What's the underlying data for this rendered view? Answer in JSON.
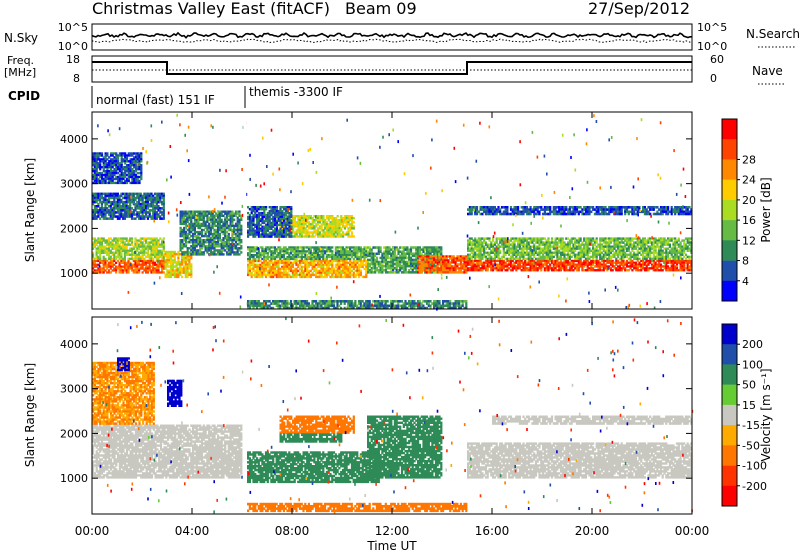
{
  "header": {
    "title": "Christmas Valley East (fitACF)",
    "beam": "Beam 09",
    "date": "27/Sep/2012"
  },
  "panels": {
    "nsky": {
      "label_left": "N.Sky",
      "label_right": "N.Search",
      "tick_top": "10^5",
      "tick_bottom": "10^0",
      "tick_top_right": "10^5",
      "tick_bottom_right": "10^0"
    },
    "freq": {
      "label_left_1": "Freq.",
      "label_left_2": "[MHz]",
      "tick_top": "18",
      "tick_bottom": "8",
      "label_right": "Nave",
      "tick_top_right": "60",
      "tick_bottom_right": "0"
    },
    "cpid": {
      "label": "CPID",
      "segment_1": "normal (fast) 151 IF",
      "segment_2": "themis -3300 IF"
    }
  },
  "chart_data": [
    {
      "type": "heatmap",
      "name": "power",
      "ylabel": "Slant Range [km]",
      "xlabel": "",
      "ylim": [
        200,
        4600
      ],
      "yticks": [
        "1000",
        "2000",
        "3000",
        "4000"
      ],
      "colorbar": {
        "label": "Power [dB]",
        "ticks": [
          "4",
          "8",
          "12",
          "16",
          "20",
          "24",
          "28"
        ],
        "colors": [
          "#0000ff",
          "#1f4faa",
          "#2e8b57",
          "#66bb44",
          "#aadd22",
          "#ffcc00",
          "#ff8800",
          "#ff4400",
          "#ff0000"
        ]
      },
      "features": [
        {
          "t0": 0.0,
          "t1": 2.9,
          "r0": 1000,
          "r1": 1300,
          "level": 24
        },
        {
          "t0": 0.0,
          "t1": 2.9,
          "r0": 1300,
          "r1": 1800,
          "level": 14
        },
        {
          "t0": 0.0,
          "t1": 2.9,
          "r0": 2200,
          "r1": 2800,
          "level": 6
        },
        {
          "t0": 0.0,
          "t1": 2.0,
          "r0": 3000,
          "r1": 3700,
          "level": 5
        },
        {
          "t0": 2.9,
          "t1": 4.0,
          "r0": 900,
          "r1": 1500,
          "level": 18
        },
        {
          "t0": 3.5,
          "t1": 6.0,
          "r0": 1400,
          "r1": 2400,
          "level": 8
        },
        {
          "t0": 6.2,
          "t1": 11.0,
          "r0": 900,
          "r1": 1300,
          "level": 20
        },
        {
          "t0": 6.2,
          "t1": 11.0,
          "r0": 1300,
          "r1": 1600,
          "level": 10
        },
        {
          "t0": 7.5,
          "t1": 10.5,
          "r0": 1800,
          "r1": 2300,
          "level": 16
        },
        {
          "t0": 6.2,
          "t1": 8.0,
          "r0": 1800,
          "r1": 2500,
          "level": 6
        },
        {
          "t0": 11.0,
          "t1": 14.0,
          "r0": 1000,
          "r1": 1600,
          "level": 10
        },
        {
          "t0": 13.0,
          "t1": 15.0,
          "r0": 1000,
          "r1": 1400,
          "level": 24
        },
        {
          "t0": 15.0,
          "t1": 24.0,
          "r0": 1050,
          "r1": 1300,
          "level": 26
        },
        {
          "t0": 15.0,
          "t1": 24.0,
          "r0": 1300,
          "r1": 1800,
          "level": 12
        },
        {
          "t0": 15.0,
          "t1": 24.0,
          "r0": 2300,
          "r1": 2500,
          "level": 5
        },
        {
          "t0": 6.2,
          "t1": 15.0,
          "r0": 200,
          "r1": 400,
          "level": 8
        }
      ]
    },
    {
      "type": "heatmap",
      "name": "velocity",
      "ylabel": "Slant Range [km]",
      "xlabel": "Time UT",
      "ylim": [
        200,
        4600
      ],
      "yticks": [
        "1000",
        "2000",
        "3000",
        "4000"
      ],
      "xticks": [
        "00:00",
        "04:00",
        "08:00",
        "12:00",
        "16:00",
        "20:00",
        "00:00"
      ],
      "colorbar": {
        "label": "Velocity [m s⁻¹]",
        "ticks": [
          "200",
          "100",
          "50",
          "15",
          "-15",
          "-50",
          "-100",
          "-200"
        ],
        "colors": [
          "#0000cc",
          "#1f4faa",
          "#2e8b57",
          "#66cc33",
          "#c8c8c0",
          "#ffaa00",
          "#ff7700",
          "#ff3300",
          "#ff0000"
        ]
      },
      "features": [
        {
          "t0": 0.0,
          "t1": 6.0,
          "r0": 1000,
          "r1": 2200,
          "level": 0
        },
        {
          "t0": 0.0,
          "t1": 2.5,
          "r0": 2200,
          "r1": 3600,
          "level": -30
        },
        {
          "t0": 3.0,
          "t1": 3.6,
          "r0": 2600,
          "r1": 3200,
          "level": 180
        },
        {
          "t0": 1.0,
          "t1": 1.5,
          "r0": 3400,
          "r1": 3700,
          "level": 180
        },
        {
          "t0": 6.2,
          "t1": 11.5,
          "r0": 900,
          "r1": 1600,
          "level": 40
        },
        {
          "t0": 7.5,
          "t1": 10.5,
          "r0": 2000,
          "r1": 2400,
          "level": -60
        },
        {
          "t0": 7.5,
          "t1": 10.0,
          "r0": 1800,
          "r1": 2000,
          "level": 40
        },
        {
          "t0": 11.0,
          "t1": 14.0,
          "r0": 1000,
          "r1": 2400,
          "level": 40
        },
        {
          "t0": 15.0,
          "t1": 24.0,
          "r0": 1000,
          "r1": 1800,
          "level": 0
        },
        {
          "t0": 16.0,
          "t1": 24.0,
          "r0": 2200,
          "r1": 2400,
          "level": 0
        },
        {
          "t0": 6.2,
          "t1": 15.0,
          "r0": 250,
          "r1": 450,
          "level": -60
        }
      ]
    }
  ]
}
